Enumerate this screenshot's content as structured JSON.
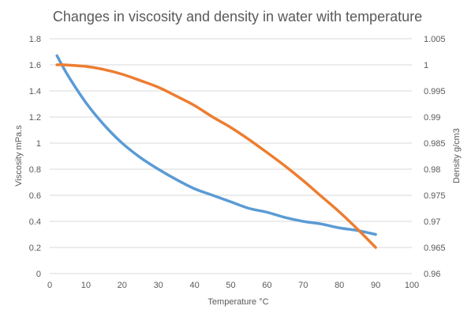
{
  "chart_data": {
    "type": "line",
    "title": "Changes in viscosity and density in water with temperature",
    "xlabel": "Temperature °C",
    "ylabel_left": "Viscosity mPa.s",
    "ylabel_right": "Density g/cm3",
    "xlim": [
      0,
      100
    ],
    "x_ticks": [
      "0",
      "10",
      "20",
      "30",
      "40",
      "50",
      "60",
      "70",
      "80",
      "90",
      "100"
    ],
    "ylim_left": [
      0,
      1.8
    ],
    "y_left_ticks": [
      "0",
      "0.2",
      "0.4",
      "0.6",
      "0.8",
      "1",
      "1.2",
      "1.4",
      "1.6",
      "1.8"
    ],
    "ylim_right": [
      0.96,
      1.005
    ],
    "y_right_ticks": [
      "0.96",
      "0.965",
      "0.97",
      "0.975",
      "0.98",
      "0.985",
      "0.99",
      "0.995",
      "1",
      "1.005"
    ],
    "grid": true,
    "series": [
      {
        "axis": "left",
        "color": "#5b9bd5",
        "x": [
          2,
          5,
          10,
          15,
          20,
          25,
          30,
          35,
          40,
          45,
          50,
          55,
          60,
          65,
          70,
          75,
          80,
          85,
          90
        ],
        "values": [
          1.67,
          1.52,
          1.31,
          1.14,
          1.0,
          0.89,
          0.8,
          0.72,
          0.65,
          0.6,
          0.55,
          0.5,
          0.47,
          0.43,
          0.4,
          0.38,
          0.35,
          0.33,
          0.3
        ]
      },
      {
        "axis": "right",
        "color": "#ed7d31",
        "x": [
          2,
          4,
          10,
          15,
          20,
          25,
          30,
          35,
          40,
          45,
          50,
          55,
          60,
          65,
          70,
          75,
          80,
          85,
          90
        ],
        "values": [
          1.0,
          1.0,
          0.9997,
          0.9991,
          0.9982,
          0.997,
          0.9957,
          0.994,
          0.9922,
          0.99,
          0.988,
          0.9857,
          0.9832,
          0.9806,
          0.9778,
          0.9748,
          0.9718,
          0.9685,
          0.965
        ]
      }
    ]
  }
}
